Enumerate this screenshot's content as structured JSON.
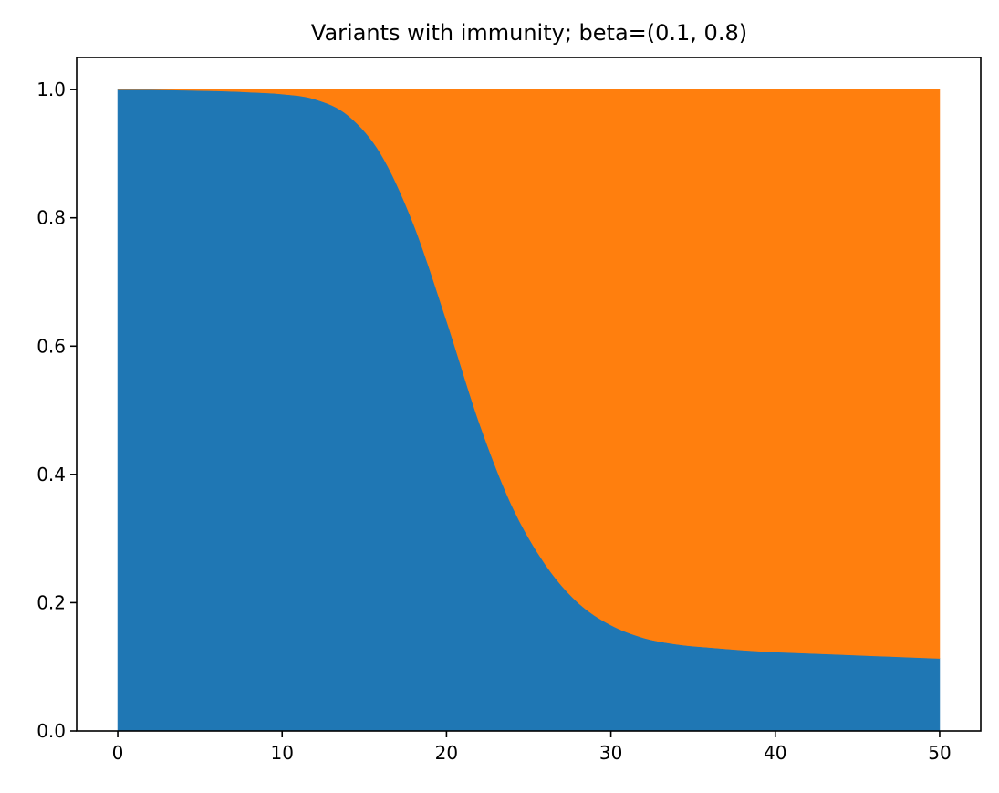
{
  "chart_data": {
    "type": "area",
    "stacked": true,
    "normalized": true,
    "title": "Variants with immunity; beta=(0.1, 0.8)",
    "xlabel": "",
    "ylabel": "",
    "xlim": [
      -2.5,
      52.5
    ],
    "ylim": [
      0.0,
      1.05
    ],
    "grid": false,
    "legend": "none",
    "x_ticks": [
      0,
      10,
      20,
      30,
      40,
      50
    ],
    "x_tick_labels": [
      "0",
      "10",
      "20",
      "30",
      "40",
      "50"
    ],
    "y_ticks": [
      0.0,
      0.2,
      0.4,
      0.6,
      0.8,
      1.0
    ],
    "y_tick_labels": [
      "0.0",
      "0.2",
      "0.4",
      "0.6",
      "0.8",
      "1.0"
    ],
    "x": [
      0,
      2,
      4,
      6,
      8,
      10,
      12,
      14,
      16,
      18,
      20,
      22,
      24,
      26,
      28,
      30,
      32,
      34,
      36,
      38,
      40,
      42,
      44,
      46,
      48,
      50
    ],
    "series": [
      {
        "color": "#1f77b4",
        "values": [
          1.0,
          1.0,
          0.999,
          0.998,
          0.996,
          0.993,
          0.985,
          0.96,
          0.9,
          0.79,
          0.64,
          0.48,
          0.35,
          0.26,
          0.2,
          0.165,
          0.145,
          0.135,
          0.13,
          0.126,
          0.123,
          0.121,
          0.119,
          0.117,
          0.115,
          0.113
        ]
      },
      {
        "color": "#ff7f0e",
        "values": [
          0.0,
          0.0,
          0.001,
          0.002,
          0.004,
          0.007,
          0.015,
          0.04,
          0.1,
          0.21,
          0.36,
          0.52,
          0.65,
          0.74,
          0.8,
          0.835,
          0.855,
          0.865,
          0.87,
          0.874,
          0.877,
          0.879,
          0.881,
          0.883,
          0.885,
          0.887
        ]
      }
    ]
  }
}
